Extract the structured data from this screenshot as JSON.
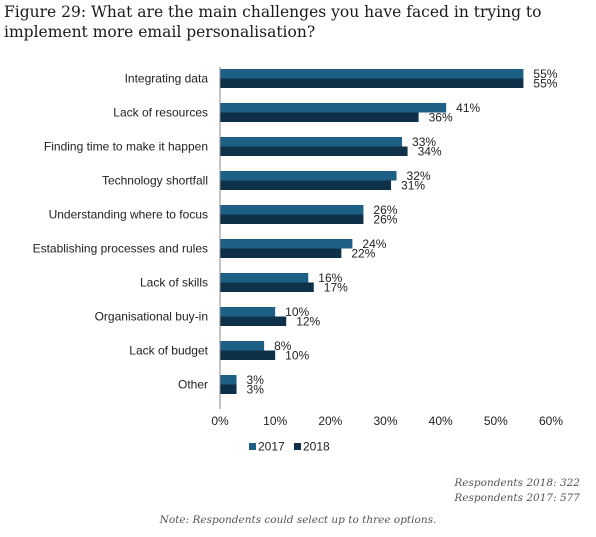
{
  "title": "Figure 29: What are the main challenges you have faced in trying to implement more email personalisation?",
  "respondents_2018": "Respondents 2018: 322",
  "respondents_2017": "Respondents 2017: 577",
  "note": "Note: Respondents could select up to three options.",
  "colors": {
    "s2017": "#1e5f86",
    "s2018": "#0e3048"
  },
  "chart_data": {
    "type": "bar",
    "orientation": "horizontal",
    "categories": [
      "Integrating data",
      "Lack of resources",
      "Finding time to make it happen",
      "Technology shortfall",
      "Understanding where to focus",
      "Establishing processes and rules",
      "Lack of skills",
      "Organisational buy-in",
      "Lack of budget",
      "Other"
    ],
    "series": [
      {
        "name": "2017",
        "values": [
          55,
          41,
          33,
          32,
          26,
          24,
          16,
          10,
          8,
          3
        ],
        "labels": [
          "55%",
          "41%",
          "33%",
          "32%",
          "26%",
          "24%",
          "16%",
          "10%",
          "8%",
          "3%"
        ]
      },
      {
        "name": "2018",
        "values": [
          55,
          36,
          34,
          31,
          26,
          22,
          17,
          12,
          10,
          3
        ],
        "labels": [
          "55%",
          "36%",
          "34%",
          "31%",
          "26%",
          "22%",
          "17%",
          "12%",
          "10%",
          "3%"
        ]
      }
    ],
    "xlim": [
      0,
      60
    ],
    "xticks": [
      0,
      10,
      20,
      30,
      40,
      50,
      60
    ],
    "xtick_labels": [
      "0%",
      "10%",
      "20%",
      "30%",
      "40%",
      "50%",
      "60%"
    ],
    "grid": false,
    "legend_position": "bottom"
  }
}
